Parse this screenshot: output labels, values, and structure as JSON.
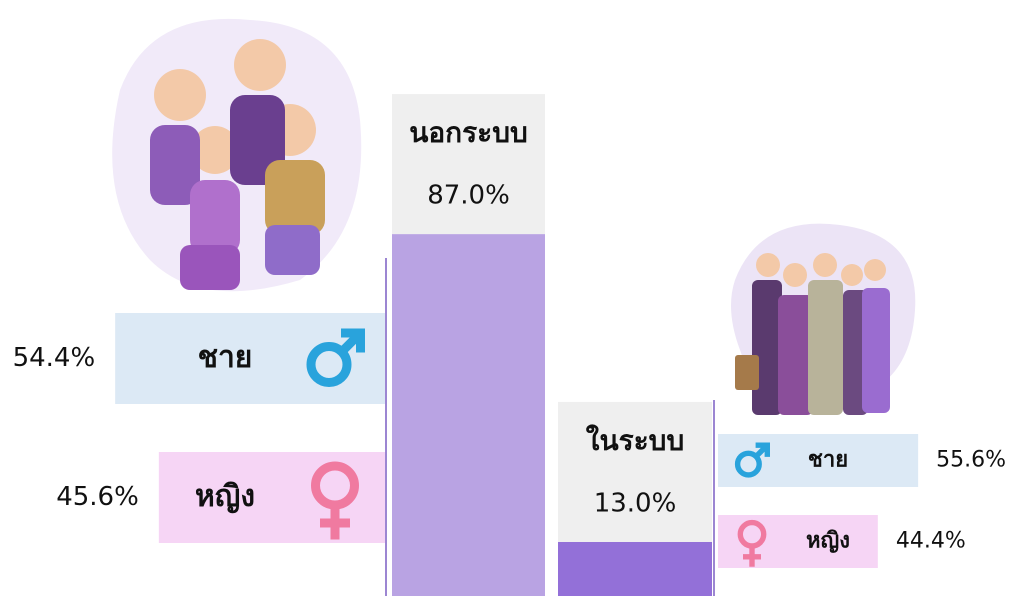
{
  "groups": [
    {
      "label": "นอกระบบ",
      "value": 87,
      "value_label": "87.0%",
      "gender": [
        {
          "label": "ชาย",
          "value": 54.4,
          "value_label": "54.4%"
        },
        {
          "label": "หญิง",
          "value": 45.6,
          "value_label": "45.6%"
        }
      ]
    },
    {
      "label": "ในระบบ",
      "value": 13,
      "value_label": "13.0%",
      "gender": [
        {
          "label": "ชาย",
          "value": 55.6,
          "value_label": "55.6%"
        },
        {
          "label": "หญิง",
          "value": 44.4,
          "value_label": "44.4%"
        }
      ]
    }
  ]
}
